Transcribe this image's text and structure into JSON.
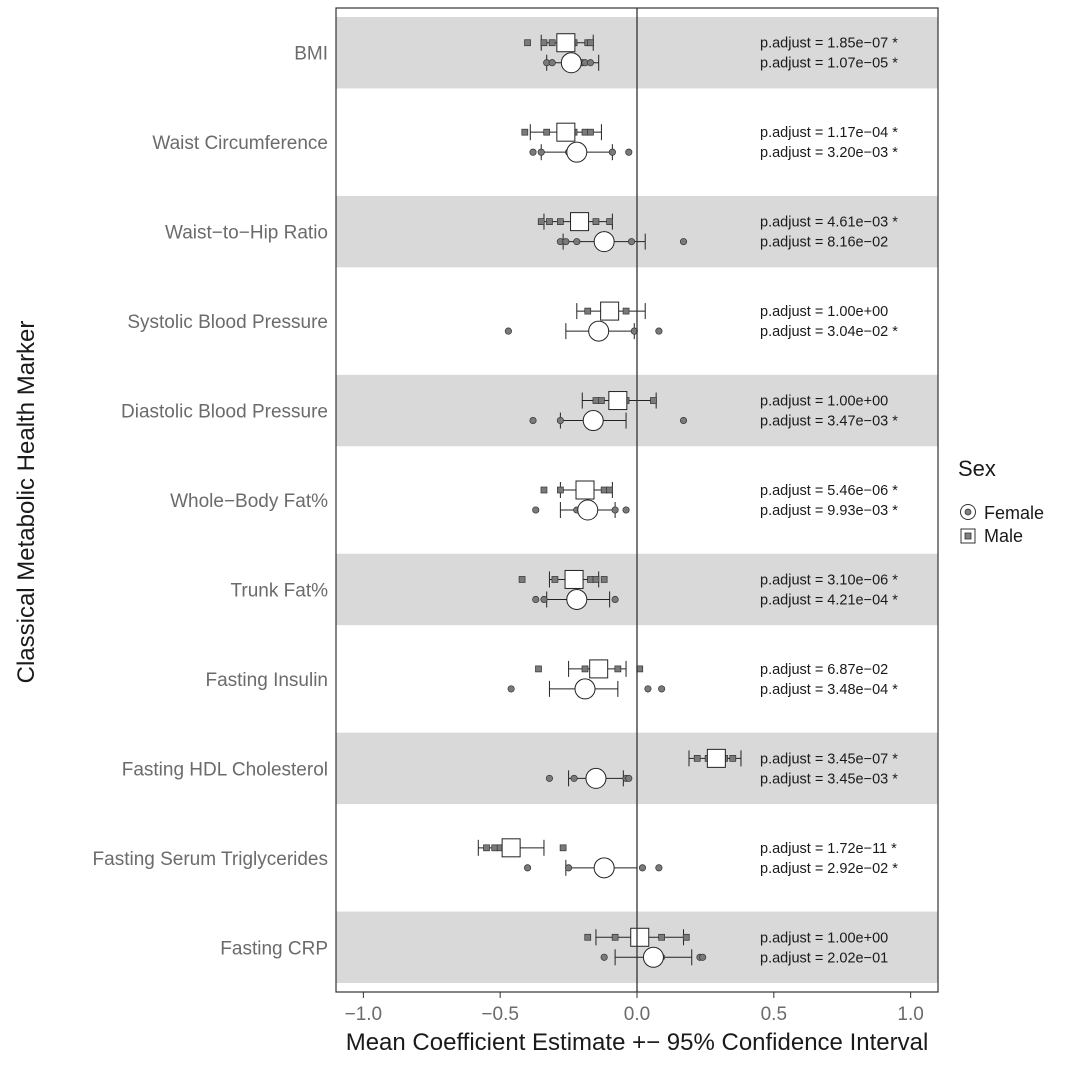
{
  "chart_data": {
    "type": "scatter",
    "xlabel": "Mean Coefficient Estimate +− 95% Confidence Interval",
    "ylabel": "Classical Metabolic Health Marker",
    "xlim": [
      -1.1,
      1.1
    ],
    "xticks": [
      {
        "value": -1.0,
        "label": "−1.0"
      },
      {
        "value": -0.5,
        "label": "−0.5"
      },
      {
        "value": 0.0,
        "label": "0.0"
      },
      {
        "value": 0.5,
        "label": "0.5"
      },
      {
        "value": 1.0,
        "label": "1.0"
      }
    ],
    "reference_line_x": 0,
    "band_color": "#d9d9d9",
    "legend": {
      "title": "Sex",
      "position": "right",
      "items": [
        {
          "label": "Female",
          "shape": "circle"
        },
        {
          "label": "Male",
          "shape": "square"
        }
      ]
    },
    "markers": [
      {
        "label": "BMI",
        "male": {
          "mean": -0.26,
          "lo": -0.35,
          "hi": -0.16,
          "points": [
            -0.4,
            -0.34,
            -0.31,
            -0.25,
            -0.23,
            -0.18,
            -0.17
          ],
          "p_adjust": "p.adjust = 1.85e−07 *"
        },
        "female": {
          "mean": -0.24,
          "lo": -0.33,
          "hi": -0.14,
          "points": [
            -0.33,
            -0.31,
            -0.24,
            -0.2,
            -0.19,
            -0.17
          ],
          "p_adjust": "p.adjust = 1.07e−05 *"
        }
      },
      {
        "label": "Waist Circumference",
        "male": {
          "mean": -0.26,
          "lo": -0.39,
          "hi": -0.13,
          "points": [
            -0.41,
            -0.33,
            -0.26,
            -0.23,
            -0.19,
            -0.17
          ],
          "p_adjust": "p.adjust = 1.17e−04 *"
        },
        "female": {
          "mean": -0.22,
          "lo": -0.35,
          "hi": -0.09,
          "points": [
            -0.38,
            -0.35,
            -0.25,
            -0.09,
            -0.03
          ],
          "p_adjust": "p.adjust = 3.20e−03 *"
        }
      },
      {
        "label": "Waist−to−Hip Ratio",
        "male": {
          "mean": -0.21,
          "lo": -0.34,
          "hi": -0.09,
          "points": [
            -0.35,
            -0.32,
            -0.28,
            -0.2,
            -0.15,
            -0.1
          ],
          "p_adjust": "p.adjust = 4.61e−03 *"
        },
        "female": {
          "mean": -0.12,
          "lo": -0.27,
          "hi": 0.03,
          "points": [
            -0.28,
            -0.26,
            -0.22,
            -0.12,
            -0.02,
            0.17
          ],
          "p_adjust": "p.adjust = 8.16e−02"
        }
      },
      {
        "label": "Systolic Blood Pressure",
        "male": {
          "mean": -0.1,
          "lo": -0.22,
          "hi": 0.03,
          "points": [
            -0.18,
            -0.12,
            -0.09,
            -0.08,
            -0.04
          ],
          "p_adjust": "p.adjust = 1.00e+00"
        },
        "female": {
          "mean": -0.14,
          "lo": -0.26,
          "hi": -0.01,
          "points": [
            -0.47,
            -0.15,
            -0.13,
            -0.01,
            0.08
          ],
          "p_adjust": "p.adjust = 3.04e−02 *"
        }
      },
      {
        "label": "Diastolic Blood Pressure",
        "male": {
          "mean": -0.07,
          "lo": -0.2,
          "hi": 0.07,
          "points": [
            -0.15,
            -0.13,
            -0.08,
            -0.04,
            0.06
          ],
          "p_adjust": "p.adjust = 1.00e+00"
        },
        "female": {
          "mean": -0.16,
          "lo": -0.28,
          "hi": -0.04,
          "points": [
            -0.38,
            -0.28,
            -0.17,
            -0.14,
            0.17
          ],
          "p_adjust": "p.adjust = 3.47e−03 *"
        }
      },
      {
        "label": "Whole−Body Fat%",
        "male": {
          "mean": -0.19,
          "lo": -0.28,
          "hi": -0.09,
          "points": [
            -0.34,
            -0.28,
            -0.17,
            -0.12,
            -0.1
          ],
          "p_adjust": "p.adjust = 5.46e−06 *"
        },
        "female": {
          "mean": -0.18,
          "lo": -0.28,
          "hi": -0.08,
          "points": [
            -0.37,
            -0.22,
            -0.18,
            -0.08,
            -0.04
          ],
          "p_adjust": "p.adjust = 9.93e−03 *"
        }
      },
      {
        "label": "Trunk Fat%",
        "male": {
          "mean": -0.23,
          "lo": -0.32,
          "hi": -0.14,
          "points": [
            -0.42,
            -0.3,
            -0.22,
            -0.17,
            -0.15,
            -0.12
          ],
          "p_adjust": "p.adjust = 3.10e−06 *"
        },
        "female": {
          "mean": -0.22,
          "lo": -0.33,
          "hi": -0.1,
          "points": [
            -0.37,
            -0.34,
            -0.22,
            -0.08
          ],
          "p_adjust": "p.adjust = 4.21e−04 *"
        }
      },
      {
        "label": "Fasting Insulin",
        "male": {
          "mean": -0.14,
          "lo": -0.25,
          "hi": -0.04,
          "points": [
            -0.36,
            -0.19,
            -0.16,
            -0.12,
            -0.07,
            0.01
          ],
          "p_adjust": "p.adjust = 6.87e−02"
        },
        "female": {
          "mean": -0.19,
          "lo": -0.32,
          "hi": -0.07,
          "points": [
            -0.46,
            -0.19,
            0.04,
            0.09
          ],
          "p_adjust": "p.adjust = 3.48e−04 *"
        }
      },
      {
        "label": "Fasting HDL Cholesterol",
        "male": {
          "mean": 0.29,
          "lo": 0.19,
          "hi": 0.38,
          "points": [
            0.22,
            0.26,
            0.3,
            0.32,
            0.35
          ],
          "p_adjust": "p.adjust = 3.45e−07 *"
        },
        "female": {
          "mean": -0.15,
          "lo": -0.25,
          "hi": -0.05,
          "points": [
            -0.32,
            -0.23,
            -0.15,
            -0.04,
            -0.03
          ],
          "p_adjust": "p.adjust = 3.45e−03 *"
        }
      },
      {
        "label": "Fasting Serum Triglycerides",
        "male": {
          "mean": -0.46,
          "lo": -0.58,
          "hi": -0.34,
          "points": [
            -0.55,
            -0.52,
            -0.5,
            -0.46,
            -0.27
          ],
          "p_adjust": "p.adjust = 1.72e−11 *"
        },
        "female": {
          "mean": -0.12,
          "lo": -0.26,
          "hi": 0.0,
          "points": [
            -0.4,
            -0.25,
            -0.12,
            0.02,
            0.08
          ],
          "p_adjust": "p.adjust = 2.92e−02 *"
        }
      },
      {
        "label": "Fasting CRP",
        "male": {
          "mean": 0.01,
          "lo": -0.15,
          "hi": 0.17,
          "points": [
            -0.18,
            -0.08,
            0.0,
            0.09,
            0.18
          ],
          "p_adjust": "p.adjust = 1.00e+00"
        },
        "female": {
          "mean": 0.06,
          "lo": -0.08,
          "hi": 0.2,
          "points": [
            -0.12,
            0.09,
            0.23,
            0.24
          ],
          "p_adjust": "p.adjust = 2.02e−01"
        }
      }
    ]
  }
}
